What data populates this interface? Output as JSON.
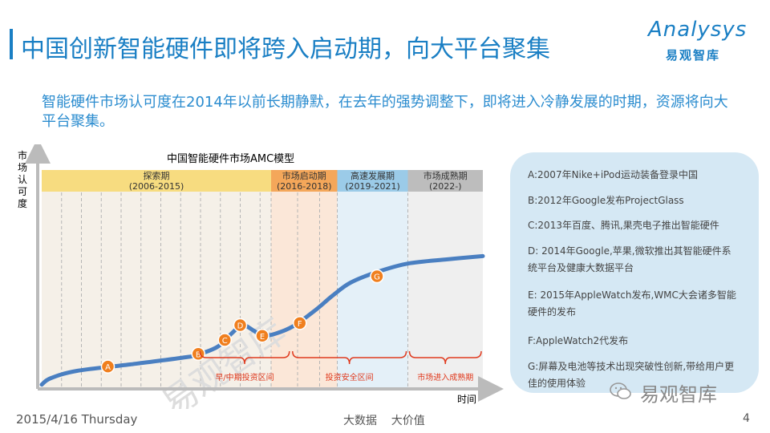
{
  "header": {
    "title": "中国创新智能硬件即将跨入启动期，向大平台聚集",
    "logo_main": "Analysys",
    "logo_sub": "易观智库"
  },
  "subtitle": "智能硬件市场认可度在2014年以前长期静默，在去年的强势调整下，即将进入冷静发展的时期，资源将向大平台聚集。",
  "chart_data": {
    "type": "line",
    "title": "中国智能硬件市场AMC模型",
    "ylabel": "市场认可度",
    "xlabel": "时间",
    "watermark": "易观智库",
    "phases": [
      {
        "name": "探索期",
        "range": "(2006-2015)",
        "color": "#f7dc80",
        "bg": "#f5f0e8",
        "start": 0,
        "end": 0.52
      },
      {
        "name": "市场启动期",
        "range": "(2016-2018)",
        "color": "#f4a75a",
        "bg": "#fbe7d8",
        "start": 0.52,
        "end": 0.67
      },
      {
        "name": "高速发展期",
        "range": "(2019-2021)",
        "color": "#9bcbe8",
        "bg": "#e4f0f8",
        "start": 0.67,
        "end": 0.83
      },
      {
        "name": "市场成熟期",
        "range": "(2022-)",
        "color": "#bdbdbd",
        "bg": "#efefef",
        "start": 0.83,
        "end": 1.0
      }
    ],
    "curve": [
      {
        "t": 0.0,
        "v": 0.02
      },
      {
        "t": 0.02,
        "v": 0.05
      },
      {
        "t": 0.08,
        "v": 0.085
      },
      {
        "t": 0.2,
        "v": 0.115
      },
      {
        "t": 0.33,
        "v": 0.15
      },
      {
        "t": 0.36,
        "v": 0.165
      },
      {
        "t": 0.4,
        "v": 0.2
      },
      {
        "t": 0.43,
        "v": 0.26
      },
      {
        "t": 0.455,
        "v": 0.3
      },
      {
        "t": 0.48,
        "v": 0.275
      },
      {
        "t": 0.5,
        "v": 0.25
      },
      {
        "t": 0.53,
        "v": 0.26
      },
      {
        "t": 0.57,
        "v": 0.295
      },
      {
        "t": 0.62,
        "v": 0.37
      },
      {
        "t": 0.66,
        "v": 0.44
      },
      {
        "t": 0.7,
        "v": 0.5
      },
      {
        "t": 0.76,
        "v": 0.55
      },
      {
        "t": 0.83,
        "v": 0.59
      },
      {
        "t": 0.92,
        "v": 0.61
      },
      {
        "t": 1.0,
        "v": 0.625
      }
    ],
    "markers": [
      {
        "label": "A",
        "t": 0.15,
        "v": 0.105
      },
      {
        "label": "B",
        "t": 0.355,
        "v": 0.165
      },
      {
        "label": "C",
        "t": 0.415,
        "v": 0.23
      },
      {
        "label": "D",
        "t": 0.45,
        "v": 0.3
      },
      {
        "label": "E",
        "t": 0.5,
        "v": 0.25
      },
      {
        "label": "F",
        "t": 0.585,
        "v": 0.31
      },
      {
        "label": "G",
        "t": 0.76,
        "v": 0.53
      }
    ],
    "gridlines": [
      0.045,
      0.09,
      0.135,
      0.18,
      0.225,
      0.27,
      0.315,
      0.36,
      0.405,
      0.45,
      0.495,
      0.52,
      0.58,
      0.63,
      0.67,
      0.83
    ],
    "brackets": [
      {
        "label": "早/中期投资区间",
        "start": 0.355,
        "end": 0.565
      },
      {
        "label": "投资安全区间",
        "start": 0.565,
        "end": 0.83
      },
      {
        "label": "市场进入成熟期",
        "start": 0.83,
        "end": 1.0
      }
    ]
  },
  "info": {
    "items": [
      "A:2007年Nike+iPod运动装备登录中国",
      "B:2012年Google发布ProjectGlass",
      "C:2013年百度、腾讯,果壳电子推出智能硬件",
      "D: 2014年Google,苹果,微软推出其智能硬件系统平台及健康大数据平台",
      "E: 2015年AppleWatch发布,WMC大会诸多智能硬件的发布",
      "F:AppleWatch2代发布",
      "G:屏幕及电池等技术出现突破性创新,带给用户更佳的使用体验"
    ]
  },
  "footer": {
    "date": "2015/4/16 Thursday",
    "center": "大数据    大价值",
    "page": "4",
    "wechat_label": "易观智库"
  },
  "colors": {
    "accent": "#1a7fc4",
    "curve": "#4a7fc1",
    "marker": "#f07f1e",
    "bracket": "#e03a1e"
  }
}
